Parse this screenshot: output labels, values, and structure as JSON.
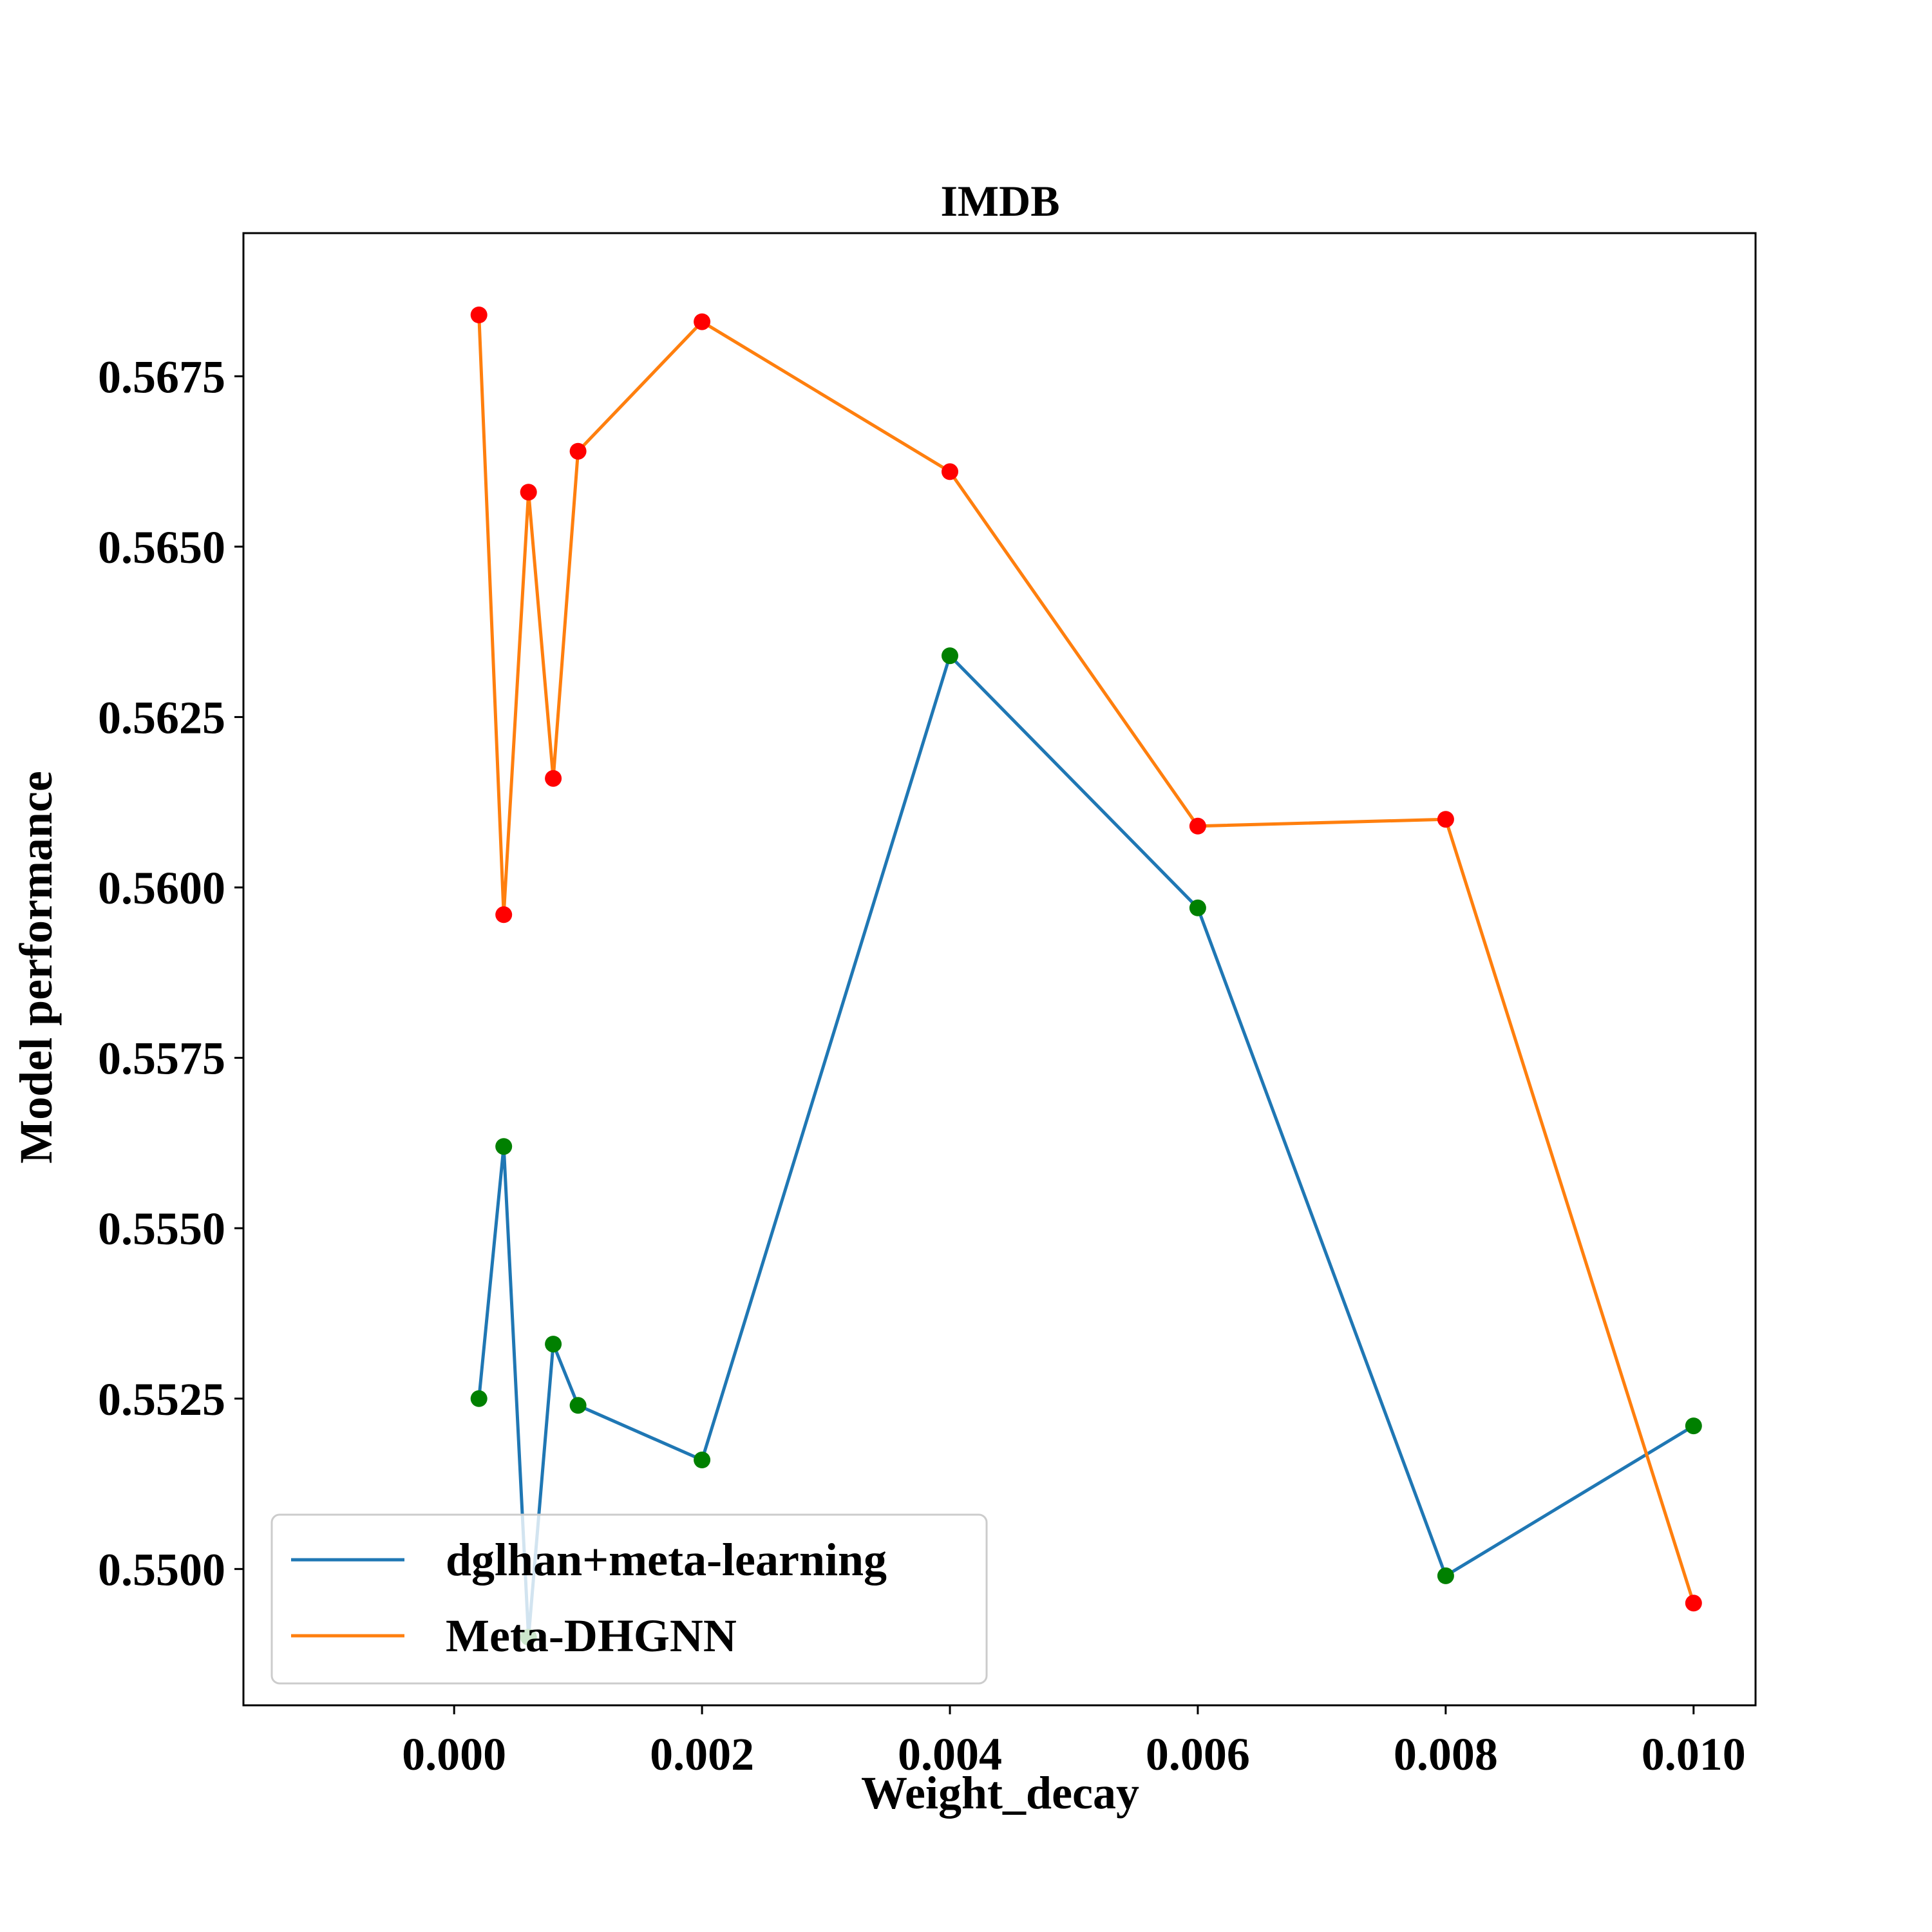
{
  "chart_data": {
    "type": "line",
    "title": "IMDB",
    "xlabel": "Weight_decay",
    "ylabel": "Model performance",
    "xlim": [
      -0.0017,
      0.0105
    ],
    "ylim": [
      0.548,
      0.5696
    ],
    "xticks": [
      0.0,
      0.002,
      0.004,
      0.006,
      0.008,
      0.01
    ],
    "xtick_labels": [
      "0.000",
      "0.002",
      "0.004",
      "0.006",
      "0.008",
      "0.010"
    ],
    "yticks": [
      0.55,
      0.5525,
      0.555,
      0.5575,
      0.56,
      0.5625,
      0.565,
      0.5675
    ],
    "ytick_labels": [
      "0.5500",
      "0.5525",
      "0.5550",
      "0.5575",
      "0.5600",
      "0.5625",
      "0.5650",
      "0.5675"
    ],
    "grid": false,
    "legend_position": "lower-left",
    "x": [
      0.0002,
      0.0004,
      0.0006,
      0.0008,
      0.001,
      0.002,
      0.004,
      0.006,
      0.008,
      0.01
    ],
    "series": [
      {
        "name": "dglhan+meta-learning",
        "line_color": "#1f77b4",
        "marker_color": "#008000",
        "values": [
          0.5525,
          0.5562,
          0.549,
          0.5533,
          0.5524,
          0.5516,
          0.5634,
          0.5597,
          0.5499,
          0.5521
        ]
      },
      {
        "name": "Meta-DHGNN",
        "line_color": "#ff7f0e",
        "marker_color": "#ff0000",
        "values": [
          0.5684,
          0.5596,
          0.5658,
          0.5616,
          0.5664,
          0.5683,
          0.5661,
          0.5609,
          0.561,
          0.5495
        ]
      }
    ]
  }
}
